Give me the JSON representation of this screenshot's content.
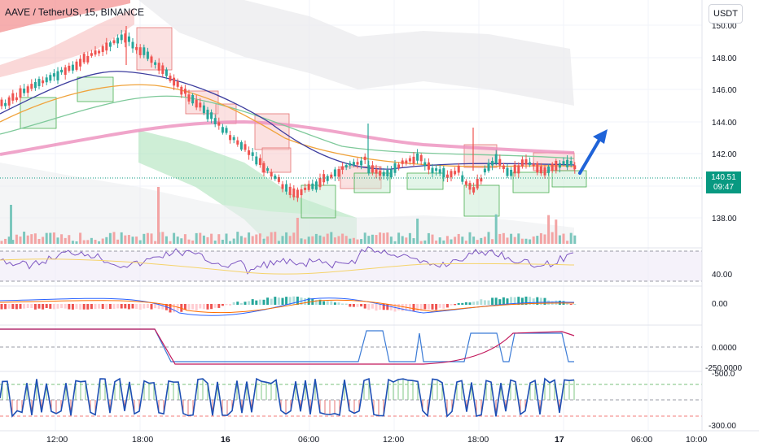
{
  "header": {
    "symbol_title": "AAVE / TetherUS, 15, BINANCE",
    "currency_button": "USDT"
  },
  "price_axis": {
    "ticks": [
      "150.00",
      "148.00",
      "146.00",
      "144.00",
      "142.00",
      "138.00"
    ]
  },
  "current_price": {
    "price": "140.51",
    "countdown": "09:47"
  },
  "indicator_axes": {
    "rsi_tick": "40.00",
    "macd_tick": "0.00",
    "osc_ticks": [
      "0.0000",
      "-250.0000",
      "-500.0"
    ],
    "stoch_tick": "-300.00"
  },
  "time_axis": {
    "ticks": [
      "12:00",
      "18:00",
      "16",
      "06:00",
      "12:00",
      "18:00",
      "17",
      "06:00",
      "10:00"
    ]
  },
  "colors": {
    "up": "#26a69a",
    "down": "#ef5350",
    "grid": "#f0f3fa",
    "accent_arrow": "#1f63d8"
  }
}
